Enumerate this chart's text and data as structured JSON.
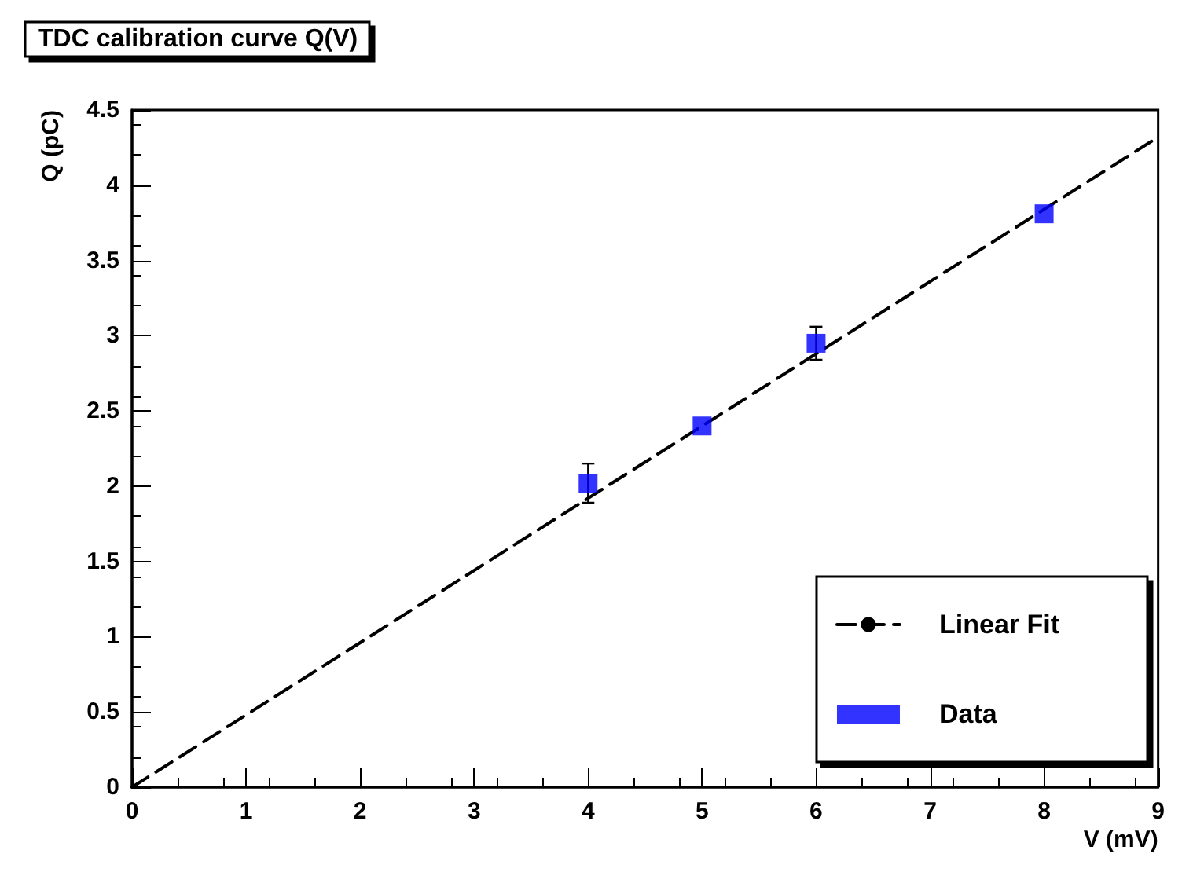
{
  "chart_data": {
    "type": "scatter",
    "title": "TDC calibration curve Q(V)",
    "xlabel": "V (mV)",
    "ylabel": "Q (pC)",
    "xlim": [
      0,
      9
    ],
    "xticks": [
      0,
      1,
      2,
      3,
      4,
      5,
      6,
      7,
      8,
      9
    ],
    "ylim": [
      0,
      4.5
    ],
    "yticks": [
      0,
      0.5,
      1,
      1.5,
      2,
      2.5,
      3,
      3.5,
      4,
      4.5
    ],
    "grid": false,
    "legend": "bottom right",
    "series": [
      {
        "name": "Linear Fit",
        "type": "line",
        "x": [
          0,
          9
        ],
        "values": [
          0,
          4.32
        ],
        "color": "#000000",
        "line_style": "dashed",
        "marker": "none"
      },
      {
        "name": "Data",
        "x": [
          4,
          5,
          6,
          8
        ],
        "values": [
          2.02,
          2.4,
          2.95,
          3.81
        ],
        "errors": [
          0.13,
          null,
          0.11,
          null
        ],
        "color": "#0000ff",
        "marker": "square"
      }
    ]
  }
}
